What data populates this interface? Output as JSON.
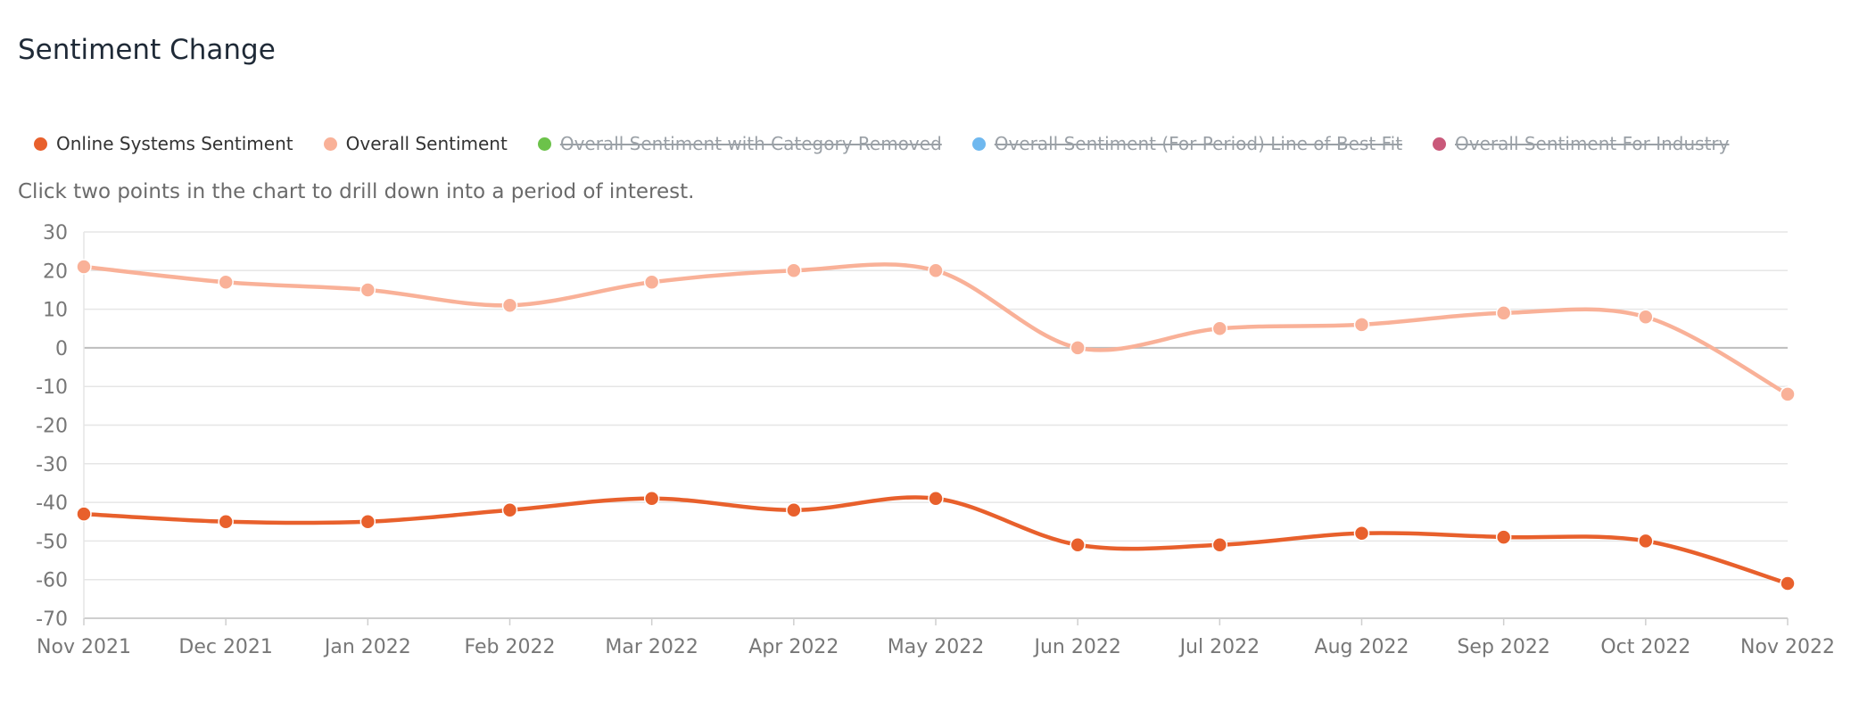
{
  "header": {
    "title": "Sentiment Change"
  },
  "hint": "Click two points in the chart to drill down into a period of interest.",
  "legend": [
    {
      "label": "Online Systems Sentiment",
      "color": "#e8602c",
      "hidden": false
    },
    {
      "label": "Overall Sentiment",
      "color": "#f9b198",
      "hidden": false
    },
    {
      "label": "Overall Sentiment with Category Removed",
      "color": "#6cc24a",
      "hidden": true
    },
    {
      "label": "Overall Sentiment (For Period) Line of Best Fit",
      "color": "#6fb8ef",
      "hidden": true
    },
    {
      "label": "Overall Sentiment For Industry",
      "color": "#c9597a",
      "hidden": true
    }
  ],
  "chart_data": {
    "type": "line",
    "categories": [
      "Nov 2021",
      "Dec 2021",
      "Jan 2022",
      "Feb 2022",
      "Mar 2022",
      "Apr 2022",
      "May 2022",
      "Jun 2022",
      "Jul 2022",
      "Aug 2022",
      "Sep 2022",
      "Oct 2022",
      "Nov 2022"
    ],
    "yticks": [
      "30",
      "20",
      "10",
      "0",
      "-10",
      "-20",
      "-30",
      "-40",
      "-50",
      "-60",
      "-70"
    ],
    "ylim": [
      -70,
      30
    ],
    "grid": true,
    "legend_position": "top-left",
    "series": [
      {
        "name": "Online Systems Sentiment",
        "color": "#e8602c",
        "values": [
          -43,
          -45,
          -45,
          -42,
          -39,
          -42,
          -39,
          -51,
          -51,
          -48,
          -49,
          -50,
          -61
        ]
      },
      {
        "name": "Overall Sentiment",
        "color": "#f9b198",
        "values": [
          21,
          17,
          15,
          11,
          17,
          20,
          20,
          0,
          5,
          6,
          9,
          8,
          -12
        ]
      }
    ]
  }
}
